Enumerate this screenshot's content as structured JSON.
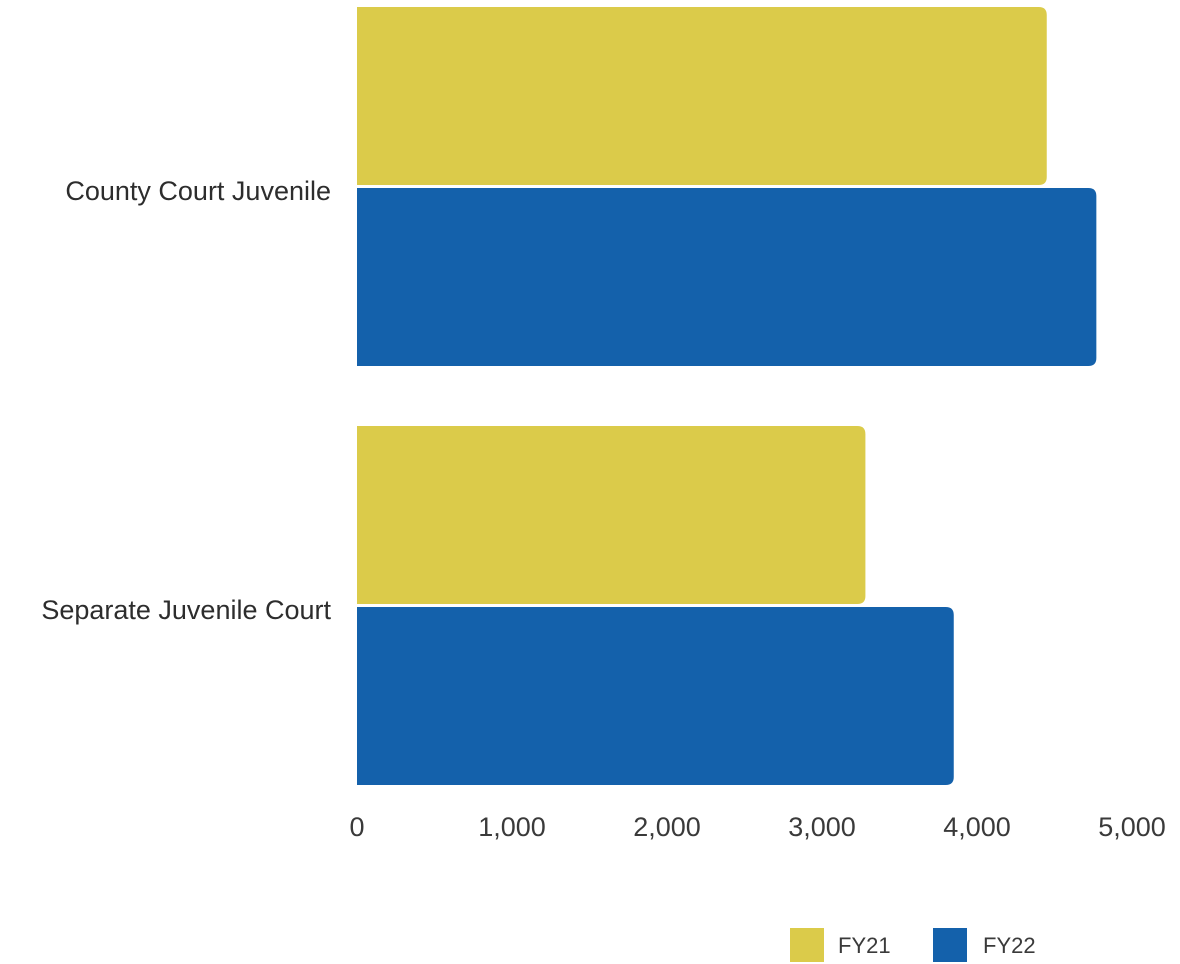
{
  "chart_data": {
    "type": "bar",
    "orientation": "horizontal",
    "categories": [
      "County Court Juvenile",
      "Separate Juvenile Court"
    ],
    "series": [
      {
        "name": "FY21",
        "color": "#DBCB4A",
        "values": [
          4450,
          3280
        ]
      },
      {
        "name": "FY22",
        "color": "#1461AB",
        "values": [
          4770,
          3850
        ]
      }
    ],
    "xticks": [
      "0",
      "1,000",
      "2,000",
      "3,000",
      "4,000",
      "5,000"
    ],
    "xlim": [
      0,
      5000
    ],
    "grid": false,
    "legend": "bottom-right",
    "title": "",
    "xlabel": "",
    "ylabel": ""
  }
}
